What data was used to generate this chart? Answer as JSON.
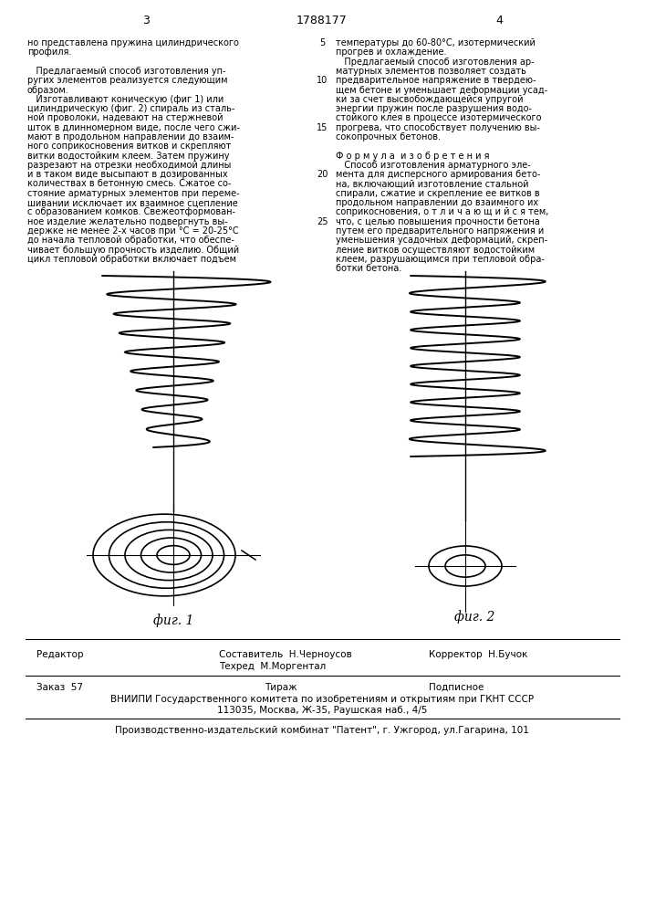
{
  "page_width": 7.07,
  "page_height": 10.0,
  "bg_color": "#ffffff",
  "header_left_num": "3",
  "header_center_num": "1788177",
  "header_right_num": "4",
  "col1_lines": [
    "но представлена пружина цилиндрического",
    "профиля.",
    "",
    "   Предлагаемый способ изготовления уп-",
    "ругих элементов реализуется следующим",
    "образом.",
    "   Изготавливают коническую (фиг 1) или",
    "цилиндрическую (фиг. 2) спираль из сталь-",
    "ной проволоки, надевают на стержневой",
    "шток в длинномерном виде, после чего сжи-",
    "мают в продольном направлении до взаим-",
    "ного соприкосновения витков и скрепляют",
    "витки водостойким клеем. Затем пружину",
    "разрезают на отрезки необходимой длины",
    "и в таком виде высыпают в дозированных",
    "количествах в бетонную смесь. Сжатое со-",
    "стояние арматурных элементов при переме-",
    "шивании исключает их взаимное сцепление",
    "с образованием комков. Свежеотформован-",
    "ное изделие желательно подвергнуть вы-",
    "держке не менее 2-х часов при °С = 20-25°С",
    "до начала тепловой обработки, что обеспе-",
    "чивает большую прочность изделию. Общий",
    "цикл тепловой обработки включает подъем"
  ],
  "col2_lines": [
    "температуры до 60-80°С, изотермический",
    "прогрев и охлаждение.",
    "   Предлагаемый способ изготовления ар-",
    "матурных элементов позволяет создать",
    "предварительное напряжение в твердею-",
    "щем бетоне и уменьшает деформации усад-",
    "ки за счет высвобождающейся упругой",
    "энергии пружин после разрушения водо-",
    "стойкого клея в процессе изотермического",
    "прогрева, что способствует получению вы-",
    "сокопрочных бетонов.",
    "",
    "Ф о р м у л а  и з о б р е т е н и я",
    "   Способ изготовления арматурного эле-",
    "мента для дисперсного армирования бето-",
    "на, включающий изготовление стальной",
    "спирали, сжатие и скрепление ее витков в",
    "продольном направлении до взаимного их",
    "соприкосновения, о т л и ч а ю щ и й с я тем,",
    "что, с целью повышения прочности бетона",
    "путем его предварительного напряжения и",
    "уменьшения усадочных деформаций, скреп-",
    "ление витков осуществляют водостойким",
    "клеем, разрушающимся при тепловой обра-",
    "ботки бетона."
  ],
  "line_numbers": [
    {
      "num": "5",
      "line_idx": 0
    },
    {
      "num": "10",
      "line_idx": 4
    },
    {
      "num": "15",
      "line_idx": 9
    },
    {
      "num": "20",
      "line_idx": 14
    },
    {
      "num": "25",
      "line_idx": 19
    }
  ],
  "fig1_label": "фиг. 1",
  "fig2_label": "фиг. 2",
  "footer_editor_label": "Редактор",
  "footer_composer_label": "Составитель  Н.Черноусов",
  "footer_corrector_label": "Корректор  Н.Бучок",
  "footer_techred_label": "Техред  М.Моргентал",
  "footer_order": "Заказ  57",
  "footer_print": "Тираж",
  "footer_subscription": "Подписное",
  "footer_vniiipi": "ВНИИПИ Государственного комитета по изобретениям и открытиям при ГКНТ СССР",
  "footer_address": "113035, Москва, Ж-35, Раушская наб., 4/5",
  "footer_publisher": "Производственно-издательский комбинат \"Патент\", г. Ужгород, ул.Гагарина, 101"
}
